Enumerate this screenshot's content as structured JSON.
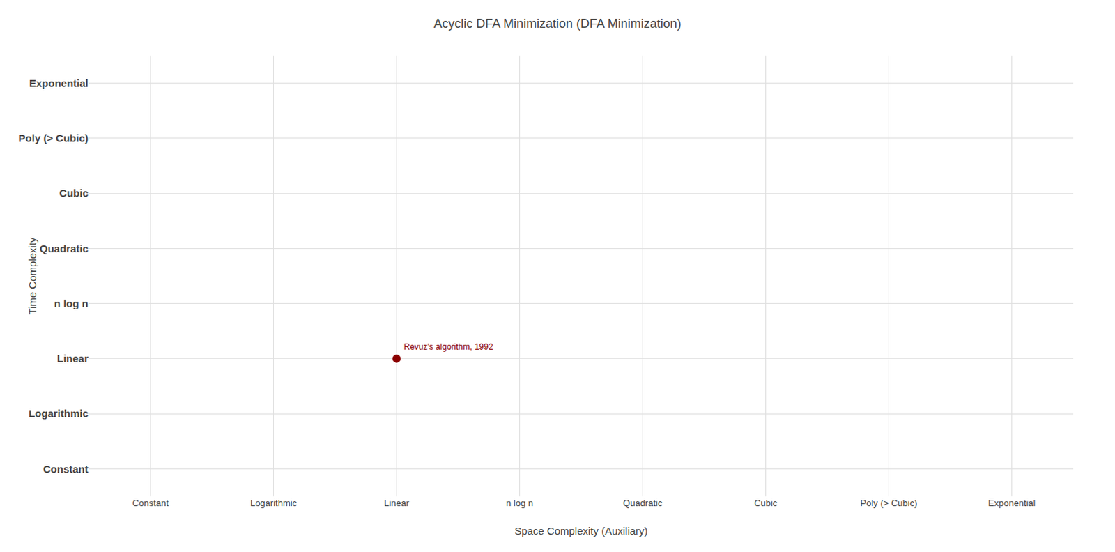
{
  "chart_data": {
    "type": "scatter",
    "title": "Acyclic DFA Minimization (DFA Minimization)",
    "xlabel": "Space Complexity (Auxiliary)",
    "ylabel": "Time Complexity",
    "x_categories": [
      "Constant",
      "Logarithmic",
      "Linear",
      "n log n",
      "Quadratic",
      "Cubic",
      "Poly (> Cubic)",
      "Exponential"
    ],
    "y_categories": [
      "Constant",
      "Logarithmic",
      "Linear",
      "n log n",
      "Quadratic",
      "Cubic",
      "Poly (> Cubic)",
      "Exponential"
    ],
    "points": [
      {
        "x": "Linear",
        "y": "Linear",
        "label": "Revuz's algorithm, 1992",
        "color": "#8b0000"
      }
    ],
    "grid": true
  }
}
